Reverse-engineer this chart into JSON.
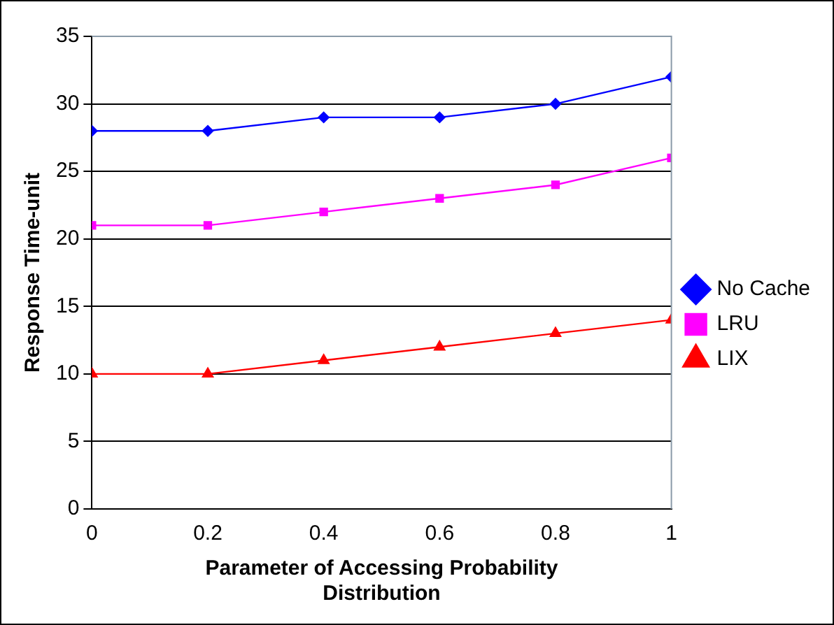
{
  "chart_data": {
    "type": "line",
    "xlabel": "Parameter of Accessing Probability Distribution",
    "ylabel": "Response Time-unit",
    "x": [
      0,
      0.2,
      0.4,
      0.6,
      0.8,
      1
    ],
    "xlim": [
      0,
      1
    ],
    "xticks": [
      0,
      0.2,
      0.4,
      0.6,
      0.8,
      1
    ],
    "ylim": [
      0,
      35
    ],
    "yticks": [
      0,
      5,
      10,
      15,
      20,
      25,
      30,
      35
    ],
    "grid": "y",
    "legend": "right",
    "series": [
      {
        "name": "No Cache",
        "color": "#0000ff",
        "marker": "diamond",
        "values": [
          28,
          28,
          29,
          29,
          30,
          32
        ]
      },
      {
        "name": "LRU",
        "color": "#ff00ff",
        "marker": "square",
        "values": [
          21,
          21,
          22,
          23,
          24,
          26
        ]
      },
      {
        "name": "LIX",
        "color": "#ff0000",
        "marker": "triangle",
        "values": [
          10,
          10,
          11,
          12,
          13,
          14
        ]
      }
    ]
  }
}
